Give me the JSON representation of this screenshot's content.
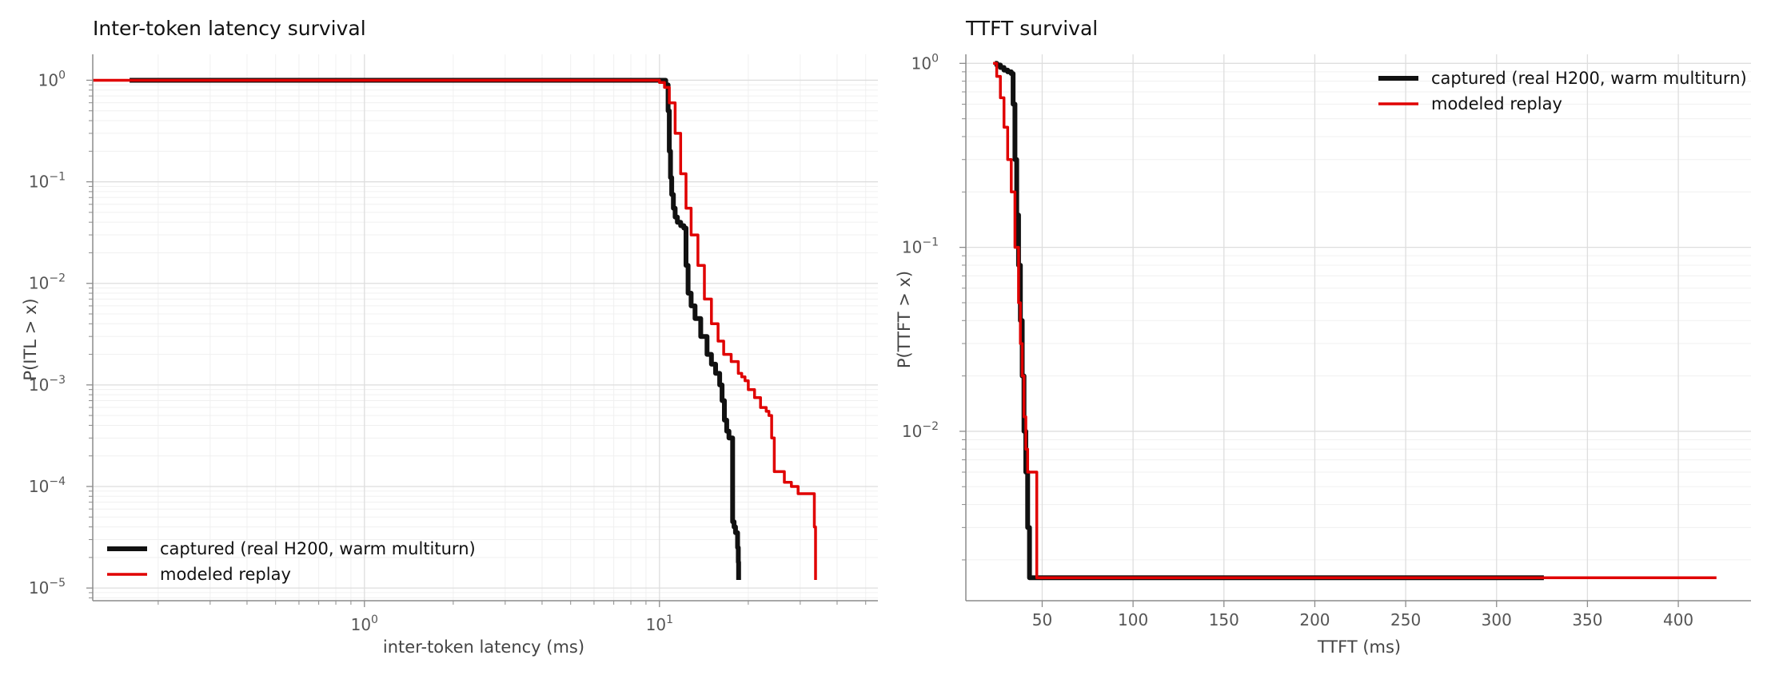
{
  "colors": {
    "captured": "#111111",
    "modeled": "#e00000",
    "grid_major": "#dedede",
    "grid_minor": "#f0f0f0",
    "spine": "#8c8c8c"
  },
  "chart_data": [
    {
      "type": "line",
      "title": "Inter-token latency survival",
      "xlabel": "inter-token latency (ms)",
      "ylabel": "P(ITL > x)",
      "xscale": "log",
      "yscale": "log",
      "xlim": [
        0.12,
        55
      ],
      "ylim": [
        7.5e-06,
        1.8
      ],
      "grid": true,
      "legend": "lower-left",
      "xticks": [
        {
          "value": 1,
          "base": "10",
          "exp": "0"
        },
        {
          "value": 10,
          "base": "10",
          "exp": "1"
        }
      ],
      "yticks": [
        {
          "value": 1,
          "base": "10",
          "exp": "0"
        },
        {
          "value": 0.1,
          "base": "10",
          "exp": "−1"
        },
        {
          "value": 0.01,
          "base": "10",
          "exp": "−2"
        },
        {
          "value": 0.001,
          "base": "10",
          "exp": "−3"
        },
        {
          "value": 0.0001,
          "base": "10",
          "exp": "−4"
        },
        {
          "value": 1e-05,
          "base": "10",
          "exp": "−5"
        }
      ],
      "series": [
        {
          "name": "captured (real H200, warm multiturn)",
          "color": "#111111",
          "width": 6,
          "x": [
            0.16,
            10.3,
            10.5,
            10.7,
            10.8,
            10.9,
            11.0,
            11.15,
            11.3,
            11.5,
            11.8,
            12.1,
            12.3,
            12.5,
            12.8,
            13.2,
            13.8,
            14.5,
            15.0,
            15.5,
            16.0,
            16.3,
            16.6,
            16.9,
            17.2,
            17.7,
            17.9,
            18.1,
            18.4,
            18.5,
            18.55
          ],
          "y": [
            1,
            1,
            0.9,
            0.5,
            0.2,
            0.11,
            0.075,
            0.055,
            0.045,
            0.04,
            0.037,
            0.035,
            0.015,
            0.008,
            0.006,
            0.0045,
            0.003,
            0.002,
            0.0016,
            0.0013,
            0.001,
            0.0007,
            0.00045,
            0.00035,
            0.0003,
            4.5e-05,
            4e-05,
            3.5e-05,
            2.5e-05,
            1.8e-05,
            1.2e-05
          ]
        },
        {
          "name": "modeled replay",
          "color": "#e00000",
          "width": 3.5,
          "x": [
            0.12,
            9.5,
            10.0,
            10.4,
            10.8,
            11.3,
            11.8,
            12.3,
            12.8,
            13.5,
            14.2,
            15.0,
            15.8,
            16.5,
            17.5,
            18.5,
            19.0,
            19.5,
            20.0,
            21.0,
            22.0,
            23.0,
            23.5,
            24.0,
            24.5,
            25.0,
            26.5,
            28.0,
            29.5,
            31.0,
            33.0,
            33.5,
            33.8
          ],
          "y": [
            1,
            1,
            0.95,
            0.85,
            0.6,
            0.3,
            0.12,
            0.055,
            0.03,
            0.015,
            0.007,
            0.004,
            0.0027,
            0.002,
            0.0017,
            0.0013,
            0.0012,
            0.0011,
            0.0009,
            0.00075,
            0.0006,
            0.00055,
            0.0005,
            0.0003,
            0.00014,
            0.00014,
            0.00011,
            0.0001,
            8.5e-05,
            8.5e-05,
            8.5e-05,
            4e-05,
            1.2e-05
          ]
        }
      ]
    },
    {
      "type": "line",
      "title": "TTFT survival",
      "xlabel": "TTFT (ms)",
      "ylabel": "P(TTFT > x)",
      "xscale": "linear",
      "yscale": "log",
      "xlim": [
        8,
        440
      ],
      "ylim": [
        0.0012,
        1.12
      ],
      "grid": true,
      "legend": "top-right",
      "xticks": [
        {
          "value": 50,
          "label": "50"
        },
        {
          "value": 100,
          "label": "100"
        },
        {
          "value": 150,
          "label": "150"
        },
        {
          "value": 200,
          "label": "200"
        },
        {
          "value": 250,
          "label": "250"
        },
        {
          "value": 300,
          "label": "300"
        },
        {
          "value": 350,
          "label": "350"
        },
        {
          "value": 400,
          "label": "400"
        }
      ],
      "yticks": [
        {
          "value": 1,
          "base": "10",
          "exp": "0"
        },
        {
          "value": 0.1,
          "base": "10",
          "exp": "−1"
        },
        {
          "value": 0.01,
          "base": "10",
          "exp": "−2"
        }
      ],
      "series": [
        {
          "name": "captured (real H200, warm multiturn)",
          "color": "#111111",
          "width": 6,
          "x": [
            24,
            25,
            27,
            29,
            31,
            33,
            34,
            35,
            36,
            37,
            38,
            39,
            40,
            41,
            42,
            43,
            326
          ],
          "y": [
            1,
            0.98,
            0.95,
            0.92,
            0.9,
            0.88,
            0.6,
            0.3,
            0.15,
            0.08,
            0.04,
            0.02,
            0.01,
            0.006,
            0.003,
            0.0016,
            0.0016
          ]
        },
        {
          "name": "modeled replay",
          "color": "#e00000",
          "width": 3.5,
          "x": [
            23,
            25,
            27,
            29,
            31,
            33,
            35,
            37,
            38,
            39,
            40,
            41,
            42,
            43,
            44,
            45,
            46,
            47,
            421
          ],
          "y": [
            1,
            0.85,
            0.65,
            0.45,
            0.3,
            0.2,
            0.1,
            0.05,
            0.03,
            0.02,
            0.012,
            0.008,
            0.006,
            0.006,
            0.006,
            0.006,
            0.006,
            0.0016,
            0.0016
          ]
        }
      ]
    }
  ]
}
